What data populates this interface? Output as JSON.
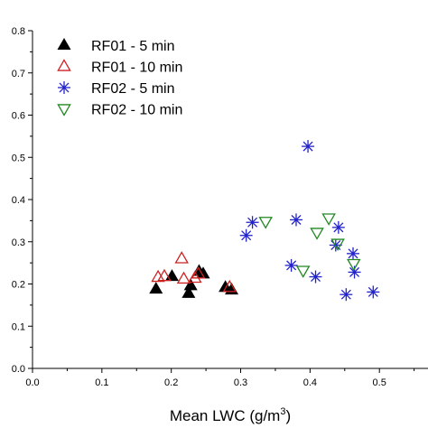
{
  "chart_data": {
    "type": "scatter",
    "xlabel": "Mean LWC (g/m",
    "xlabel_sup": "3",
    "xlabel_close": ")",
    "ylabel": "",
    "xlim": [
      0,
      0.57
    ],
    "ylim": [
      0,
      0.8
    ],
    "xticks": [
      0.0,
      0.1,
      0.2,
      0.3,
      0.4,
      0.5
    ],
    "xtick_labels": [
      "0.0",
      "0.1",
      "0.2",
      "0.3",
      "0.4",
      "0.5"
    ],
    "yticks": [
      0.0,
      0.1,
      0.2,
      0.3,
      0.4,
      0.5,
      0.6,
      0.7,
      0.8
    ],
    "ytick_labels": [
      "0.0",
      "0.1",
      "0.2",
      "0.3",
      "0.4",
      "0.5",
      "0.6",
      "0.7",
      "0.8"
    ],
    "grid": false,
    "legend_position": "top-left",
    "series": [
      {
        "name": "RF01 - 5 min",
        "marker": "filled-triangle-up",
        "color": "#000000",
        "points": [
          {
            "x": 0.178,
            "y": 0.188
          },
          {
            "x": 0.201,
            "y": 0.218
          },
          {
            "x": 0.225,
            "y": 0.178
          },
          {
            "x": 0.228,
            "y": 0.196
          },
          {
            "x": 0.24,
            "y": 0.23
          },
          {
            "x": 0.246,
            "y": 0.224
          },
          {
            "x": 0.278,
            "y": 0.192
          },
          {
            "x": 0.287,
            "y": 0.186
          }
        ]
      },
      {
        "name": "RF01 - 10 min",
        "marker": "open-triangle-up",
        "color": "#cc2222",
        "points": [
          {
            "x": 0.181,
            "y": 0.216
          },
          {
            "x": 0.19,
            "y": 0.218
          },
          {
            "x": 0.215,
            "y": 0.26
          },
          {
            "x": 0.218,
            "y": 0.212
          },
          {
            "x": 0.234,
            "y": 0.214
          },
          {
            "x": 0.239,
            "y": 0.224
          },
          {
            "x": 0.284,
            "y": 0.192
          }
        ]
      },
      {
        "name": "RF02 - 5 min",
        "marker": "asterisk",
        "color": "#2222cc",
        "points": [
          {
            "x": 0.308,
            "y": 0.315
          },
          {
            "x": 0.317,
            "y": 0.346
          },
          {
            "x": 0.373,
            "y": 0.244
          },
          {
            "x": 0.38,
            "y": 0.352
          },
          {
            "x": 0.397,
            "y": 0.526
          },
          {
            "x": 0.408,
            "y": 0.217
          },
          {
            "x": 0.437,
            "y": 0.292
          },
          {
            "x": 0.441,
            "y": 0.334
          },
          {
            "x": 0.452,
            "y": 0.175
          },
          {
            "x": 0.462,
            "y": 0.272
          },
          {
            "x": 0.464,
            "y": 0.228
          },
          {
            "x": 0.491,
            "y": 0.181
          }
        ]
      },
      {
        "name": "RF02 - 10 min",
        "marker": "open-triangle-down",
        "color": "#228822",
        "points": [
          {
            "x": 0.336,
            "y": 0.348
          },
          {
            "x": 0.39,
            "y": 0.232
          },
          {
            "x": 0.41,
            "y": 0.322
          },
          {
            "x": 0.427,
            "y": 0.356
          },
          {
            "x": 0.44,
            "y": 0.296
          },
          {
            "x": 0.463,
            "y": 0.248
          }
        ]
      }
    ]
  }
}
